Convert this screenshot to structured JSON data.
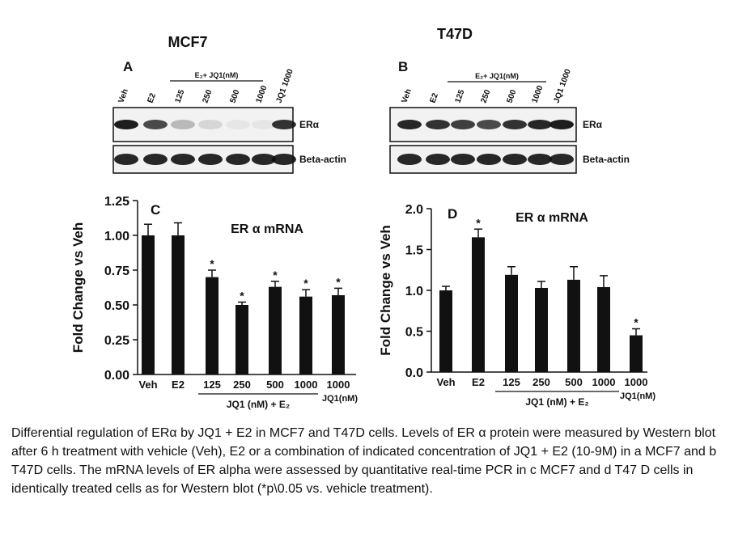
{
  "blots": [
    {
      "panel": "A",
      "cell_line": "MCF7",
      "treatment_label": "E₂+ JQ1(nM)",
      "lanes": [
        "Veh",
        "E2",
        "125",
        "250",
        "500",
        "1000",
        "JQ1 1000"
      ],
      "rows": [
        "ERα",
        "Beta-actin"
      ]
    },
    {
      "panel": "B",
      "cell_line": "T47D",
      "treatment_label": "E₂+ JQ1(nM)",
      "lanes": [
        "Veh",
        "E2",
        "125",
        "250",
        "500",
        "1000",
        "JQ1 1000"
      ],
      "rows": [
        "ERα",
        "Beta-actin"
      ]
    }
  ],
  "chart_data": [
    {
      "type": "bar",
      "panel": "C",
      "title": "ER α mRNA",
      "ylabel": "Fold Change vs Veh",
      "categories": [
        "Veh",
        "E2",
        "125",
        "250",
        "500",
        "1000",
        "1000"
      ],
      "values": [
        1.0,
        1.0,
        0.7,
        0.5,
        0.63,
        0.56,
        0.57
      ],
      "errors": [
        0.08,
        0.09,
        0.05,
        0.02,
        0.04,
        0.05,
        0.05
      ],
      "significance": [
        null,
        null,
        "*",
        "*",
        "*",
        "*",
        "*"
      ],
      "group_label": "JQ1 (nM) + E₂",
      "last_label": "JQ1(nM)",
      "color": "#111111",
      "ylim": [
        0,
        1.25
      ],
      "yticks": [
        {
          "value": 0,
          "label": "0.00"
        },
        {
          "value": 0.25,
          "label": "0.25"
        },
        {
          "value": 0.5,
          "label": "0.50"
        },
        {
          "value": 0.75,
          "label": "0.75"
        },
        {
          "value": 1,
          "label": "1.00"
        },
        {
          "value": 1.25,
          "label": "1.25"
        }
      ]
    },
    {
      "type": "bar",
      "panel": "D",
      "title": "ER α mRNA",
      "ylabel": "Fold Change vs Veh",
      "categories": [
        "Veh",
        "E2",
        "125",
        "250",
        "500",
        "1000",
        "1000"
      ],
      "values": [
        1.0,
        1.65,
        1.19,
        1.03,
        1.13,
        1.04,
        0.45
      ],
      "errors": [
        0.05,
        0.1,
        0.1,
        0.08,
        0.16,
        0.14,
        0.08
      ],
      "significance": [
        null,
        "*",
        null,
        null,
        null,
        null,
        "*"
      ],
      "group_label": "JQ1 (nM) + E₂",
      "last_label": "JQ1(nM)",
      "color": "#111111",
      "ylim": [
        0,
        2.0
      ],
      "yticks": [
        {
          "value": 0,
          "label": "0.0"
        },
        {
          "value": 0.5,
          "label": "0.5"
        },
        {
          "value": 1,
          "label": "1.0"
        },
        {
          "value": 1.5,
          "label": "1.5"
        },
        {
          "value": 2,
          "label": "2.0"
        }
      ]
    }
  ],
  "caption": "Differential regulation of ERα by JQ1 + E2 in MCF7 and T47D cells. Levels of ER α protein were measured by Western blot after 6 h treatment with vehicle (Veh), E2 or a combination of indicated concentration of JQ1 + E2 (10-9M) in a MCF7 and b T47D cells. The mRNA levels of ER alpha were assessed by quantitative real-time PCR in c MCF7 and d T47 D cells in identically treated cells as for Western blot (*p\\0.05 vs. vehicle treatment)."
}
